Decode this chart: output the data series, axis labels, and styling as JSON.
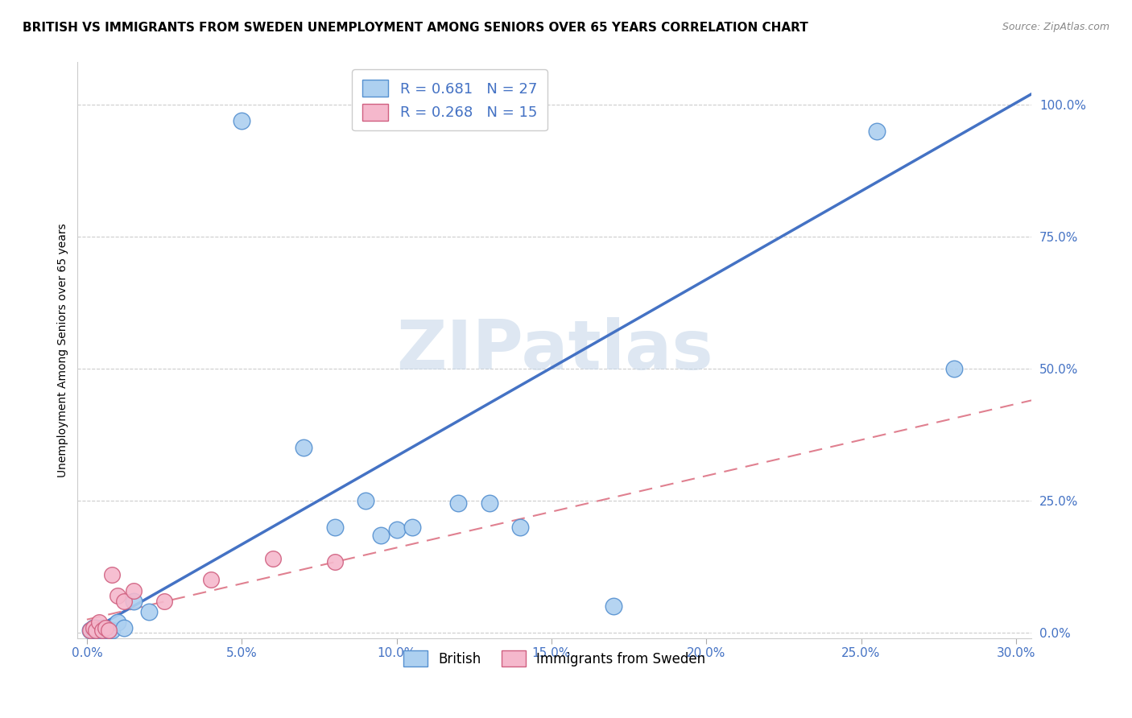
{
  "title": "BRITISH VS IMMIGRANTS FROM SWEDEN UNEMPLOYMENT AMONG SENIORS OVER 65 YEARS CORRELATION CHART",
  "source": "Source: ZipAtlas.com",
  "ylabel": "Unemployment Among Seniors over 65 years",
  "xlabel_ticks": [
    "0.0%",
    "5.0%",
    "10.0%",
    "15.0%",
    "20.0%",
    "25.0%",
    "30.0%"
  ],
  "ylabel_ticks": [
    "0.0%",
    "25.0%",
    "50.0%",
    "75.0%",
    "100.0%"
  ],
  "xlim": [
    -0.003,
    0.305
  ],
  "ylim": [
    -0.01,
    1.08
  ],
  "british_color": "#add0f0",
  "british_edge_color": "#5590d0",
  "swedish_color": "#f5b8cc",
  "swedish_edge_color": "#d06080",
  "r_british": 0.681,
  "n_british": 27,
  "r_swedish": 0.268,
  "n_swedish": 15,
  "trend_british_color": "#4472c4",
  "trend_swedish_color": "#e08090",
  "watermark": "ZIPatlas",
  "watermark_color": "#c8d8ea",
  "british_x": [
    0.001,
    0.002,
    0.002,
    0.003,
    0.003,
    0.004,
    0.005,
    0.006,
    0.007,
    0.008,
    0.01,
    0.012,
    0.015,
    0.02,
    0.05,
    0.07,
    0.08,
    0.09,
    0.095,
    0.1,
    0.105,
    0.12,
    0.13,
    0.14,
    0.17,
    0.255,
    0.28
  ],
  "british_y": [
    0.005,
    0.005,
    0.01,
    0.005,
    0.01,
    0.005,
    0.01,
    0.005,
    0.005,
    0.005,
    0.02,
    0.01,
    0.06,
    0.04,
    0.97,
    0.35,
    0.2,
    0.25,
    0.185,
    0.195,
    0.2,
    0.245,
    0.245,
    0.2,
    0.05,
    0.95,
    0.5
  ],
  "swedish_x": [
    0.001,
    0.002,
    0.003,
    0.004,
    0.005,
    0.006,
    0.007,
    0.008,
    0.01,
    0.012,
    0.015,
    0.025,
    0.04,
    0.06,
    0.08
  ],
  "swedish_y": [
    0.005,
    0.01,
    0.005,
    0.02,
    0.005,
    0.01,
    0.005,
    0.11,
    0.07,
    0.06,
    0.08,
    0.06,
    0.1,
    0.14,
    0.135
  ],
  "trend_british_x0": 0.0,
  "trend_british_y0": 0.0,
  "trend_british_x1": 0.305,
  "trend_british_y1": 1.02,
  "trend_swedish_x0": 0.0,
  "trend_swedish_y0": 0.025,
  "trend_swedish_x1": 0.305,
  "trend_swedish_y1": 0.44
}
